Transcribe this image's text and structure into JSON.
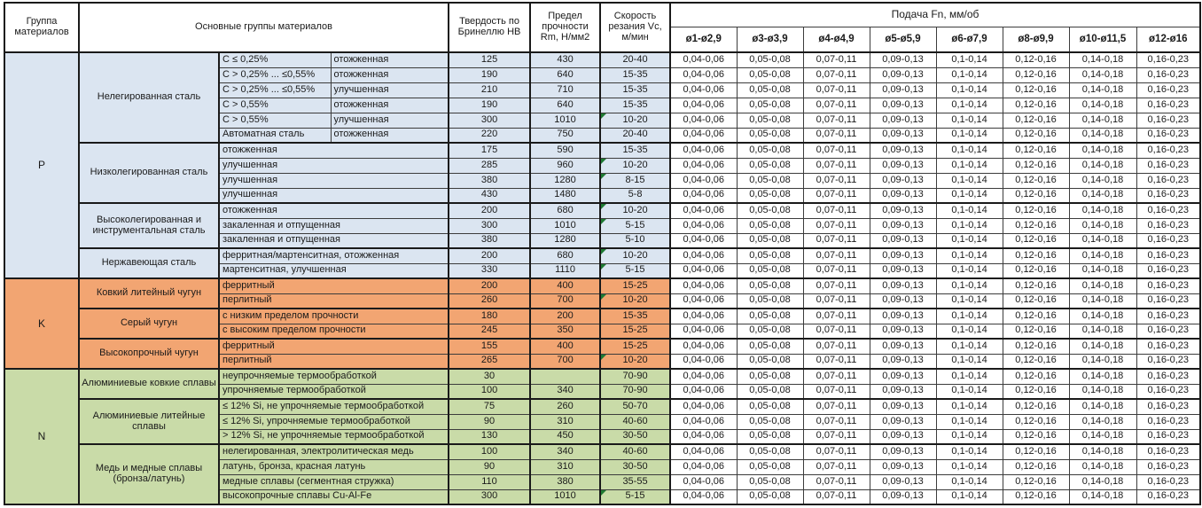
{
  "header": {
    "col_group": "Группа материалов",
    "col_materials": "Основные группы материалов",
    "col_hb": "Твердость по Бринеллю HB",
    "col_rm": "Предел прочности Rm, Н/мм2",
    "col_vc": "Скорость резания Vc, м/мин",
    "feed_title": "Подача Fn, мм/об",
    "feed_cols": [
      "ø1-ø2,9",
      "ø3-ø3,9",
      "ø4-ø4,9",
      "ø5-ø5,9",
      "ø6-ø7,9",
      "ø8-ø9,9",
      "ø10-ø11,5",
      "ø12-ø16"
    ]
  },
  "colors": {
    "P": "#dbe5f1",
    "K": "#f2a572",
    "N": "#c9dba8",
    "comment_flag": "#1f7a33",
    "feed_bg": "#ffffff"
  },
  "feed_values": [
    "0,04-0,06",
    "0,05-0,08",
    "0,07-0,11",
    "0,09-0,13",
    "0,1-0,14",
    "0,12-0,16",
    "0,14-0,18",
    "0,16-0,23"
  ],
  "sections": [
    {
      "letter": "P",
      "groups": [
        {
          "name": "Нелегированная сталь",
          "rows": [
            {
              "spec": "C ≤ 0,25%",
              "state": "отожженная",
              "hb": "125",
              "rm": "430",
              "vc": "20-40"
            },
            {
              "spec": "C > 0,25% ... ≤0,55%",
              "state": "отожженная",
              "hb": "190",
              "rm": "640",
              "vc": "15-35"
            },
            {
              "spec": "C > 0,25% ... ≤0,55%",
              "state": "улучшенная",
              "hb": "210",
              "rm": "710",
              "vc": "15-35"
            },
            {
              "spec": "C > 0,55%",
              "state": "отожженная",
              "hb": "190",
              "rm": "640",
              "vc": "15-35"
            },
            {
              "spec": "C > 0,55%",
              "state": "улучшенная",
              "hb": "300",
              "rm": "1010",
              "vc": "10-20",
              "flag": true
            },
            {
              "spec": "Автоматная сталь",
              "state": "отожженная",
              "hb": "220",
              "rm": "750",
              "vc": "20-40"
            }
          ]
        },
        {
          "name": "Низколегированная сталь",
          "rows": [
            {
              "material": "отожженная",
              "hb": "175",
              "rm": "590",
              "vc": "15-35"
            },
            {
              "material": "улучшенная",
              "hb": "285",
              "rm": "960",
              "vc": "10-20",
              "flag": true
            },
            {
              "material": "улучшенная",
              "hb": "380",
              "rm": "1280",
              "vc": "8-15",
              "flag": true
            },
            {
              "material": "улучшенная",
              "hb": "430",
              "rm": "1480",
              "vc": "5-8"
            }
          ]
        },
        {
          "name": "Высоколегированная и инструментальная сталь",
          "rows": [
            {
              "material": "отожженная",
              "hb": "200",
              "rm": "680",
              "vc": "10-20",
              "flag": true
            },
            {
              "material": "закаленная и отпущенная",
              "hb": "300",
              "rm": "1010",
              "vc": "5-15",
              "flag": true
            },
            {
              "material": "закаленная и отпущенная",
              "hb": "380",
              "rm": "1280",
              "vc": "5-10"
            }
          ]
        },
        {
          "name": "Нержавеющая сталь",
          "rows": [
            {
              "material": "ферритная/мартенситная, отожженная",
              "hb": "200",
              "rm": "680",
              "vc": "10-20",
              "flag": true
            },
            {
              "material": "мартенситная, улучшенная",
              "hb": "330",
              "rm": "1110",
              "vc": "5-15",
              "flag": true
            }
          ]
        }
      ]
    },
    {
      "letter": "K",
      "groups": [
        {
          "name": "Ковкий литейный чугун",
          "rows": [
            {
              "material": "ферритный",
              "hb": "200",
              "rm": "400",
              "vc": "15-25"
            },
            {
              "material": "перлитный",
              "hb": "260",
              "rm": "700",
              "vc": "10-20",
              "flag": true
            }
          ]
        },
        {
          "name": "Серый чугун",
          "rows": [
            {
              "material": "с низким пределом прочности",
              "hb": "180",
              "rm": "200",
              "vc": "15-35"
            },
            {
              "material": "с высоким пределом прочности",
              "hb": "245",
              "rm": "350",
              "vc": "15-25"
            }
          ]
        },
        {
          "name": "Высокопрочный чугун",
          "rows": [
            {
              "material": "ферритный",
              "hb": "155",
              "rm": "400",
              "vc": "15-25"
            },
            {
              "material": "перлитный",
              "hb": "265",
              "rm": "700",
              "vc": "10-20",
              "flag": true
            }
          ]
        }
      ]
    },
    {
      "letter": "N",
      "groups": [
        {
          "name": "Алюминиевые ковкие сплавы",
          "rows": [
            {
              "material": "неупрочняемые термообработкой",
              "hb": "30",
              "rm": "",
              "vc": "70-90"
            },
            {
              "material": "упрочняемые термообработкой",
              "hb": "100",
              "rm": "340",
              "vc": "70-90"
            }
          ]
        },
        {
          "name": "Алюминиевые литейные сплавы",
          "rows": [
            {
              "material": "≤ 12% Si, не упрочняемые термообработкой",
              "hb": "75",
              "rm": "260",
              "vc": "50-70"
            },
            {
              "material": "≤ 12% Si, упрочняемые термообработкой",
              "hb": "90",
              "rm": "310",
              "vc": "40-60"
            },
            {
              "material": "> 12% Si, не упрочняемые термообработкой",
              "hb": "130",
              "rm": "450",
              "vc": "30-50"
            }
          ]
        },
        {
          "name": "Медь и медные сплавы (бронза/латунь)",
          "rows": [
            {
              "material": "нелегированная, электролитическая медь",
              "hb": "100",
              "rm": "340",
              "vc": "40-60"
            },
            {
              "material": "латунь, бронза, красная латунь",
              "hb": "90",
              "rm": "310",
              "vc": "30-50"
            },
            {
              "material": "медные сплавы (сегментная стружка)",
              "hb": "110",
              "rm": "380",
              "vc": "35-55"
            },
            {
              "material": "высокопрочные сплавы Cu-Al-Fe",
              "hb": "300",
              "rm": "1010",
              "vc": "5-15",
              "flag": true
            }
          ]
        }
      ]
    }
  ]
}
